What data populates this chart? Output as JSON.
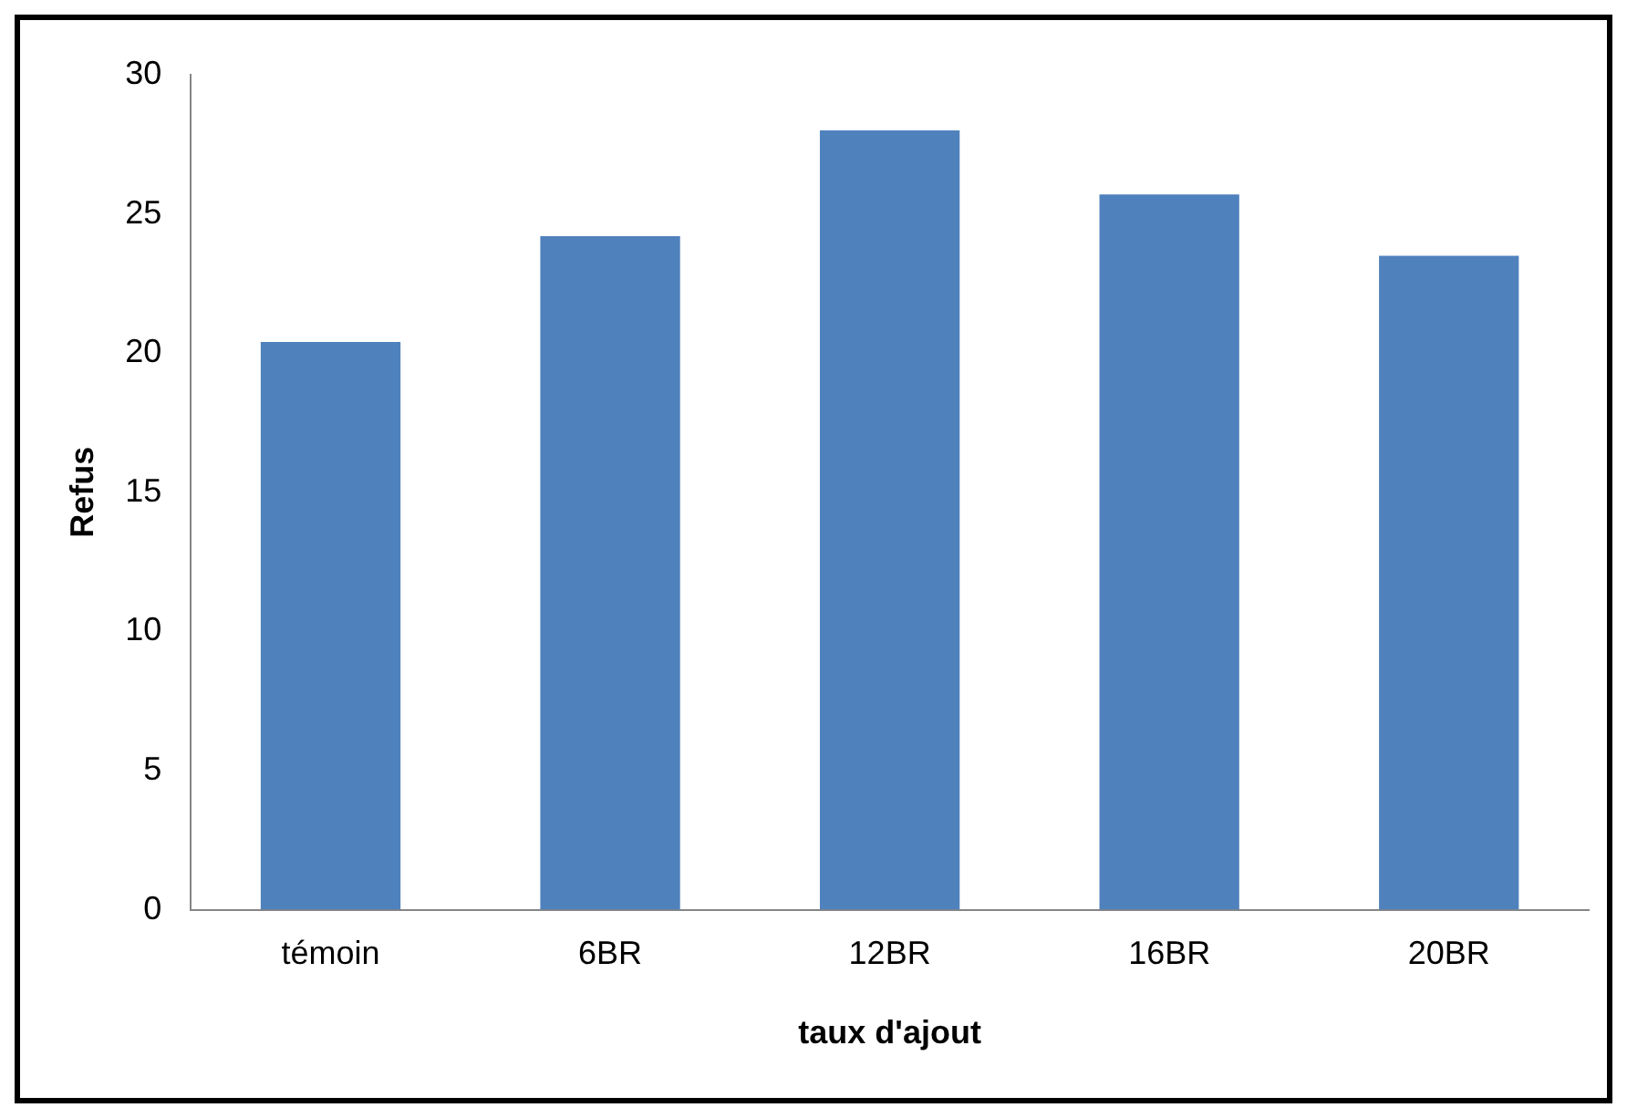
{
  "chart_data": {
    "type": "bar",
    "xlabel": "taux d'ajout",
    "ylabel": "Refus",
    "categories": [
      "témoin",
      "6BR",
      "12BR",
      "16BR",
      "20BR"
    ],
    "values": [
      20.4,
      24.2,
      28.0,
      25.7,
      23.5
    ],
    "color": "#4f81bd",
    "ylim": [
      0,
      30
    ],
    "yticks": [
      0,
      5,
      10,
      15,
      20,
      25,
      30
    ],
    "grid": false,
    "legend": false
  }
}
